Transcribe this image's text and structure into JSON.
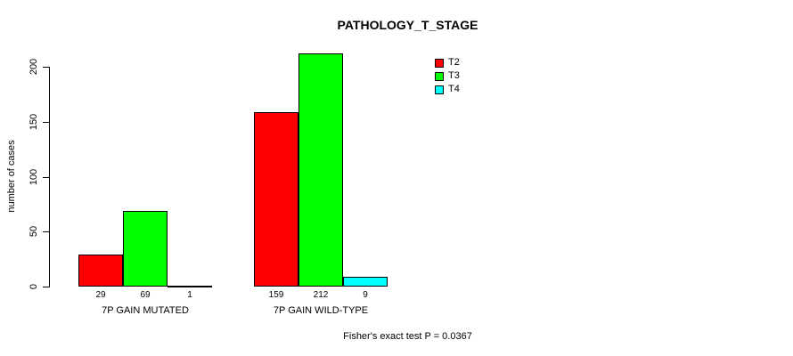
{
  "figure": {
    "background": "#FFFFFF",
    "text_color": "#000000",
    "axis_color": "#000000"
  },
  "chart_data": {
    "type": "bar",
    "title": "PATHOLOGY_T_STAGE",
    "ylabel": "number of cases",
    "xlabel": "",
    "categories": [
      "7P GAIN MUTATED",
      "7P GAIN WILD-TYPE"
    ],
    "series": [
      {
        "name": "T2",
        "color": "#FF0000",
        "values": [
          29,
          159
        ]
      },
      {
        "name": "T3",
        "color": "#00FF00",
        "values": [
          69,
          212
        ]
      },
      {
        "name": "T4",
        "color": "#00FFFF",
        "values": [
          1,
          9
        ]
      }
    ],
    "bar_value_labels": [
      [
        29,
        69,
        1
      ],
      [
        159,
        212,
        9
      ]
    ],
    "yticks": [
      0,
      50,
      100,
      150,
      200
    ],
    "ylim": [
      0,
      200
    ],
    "grid": false,
    "legend_position": "top-right",
    "annotation": "Fisher's exact test P = 0.0367"
  }
}
